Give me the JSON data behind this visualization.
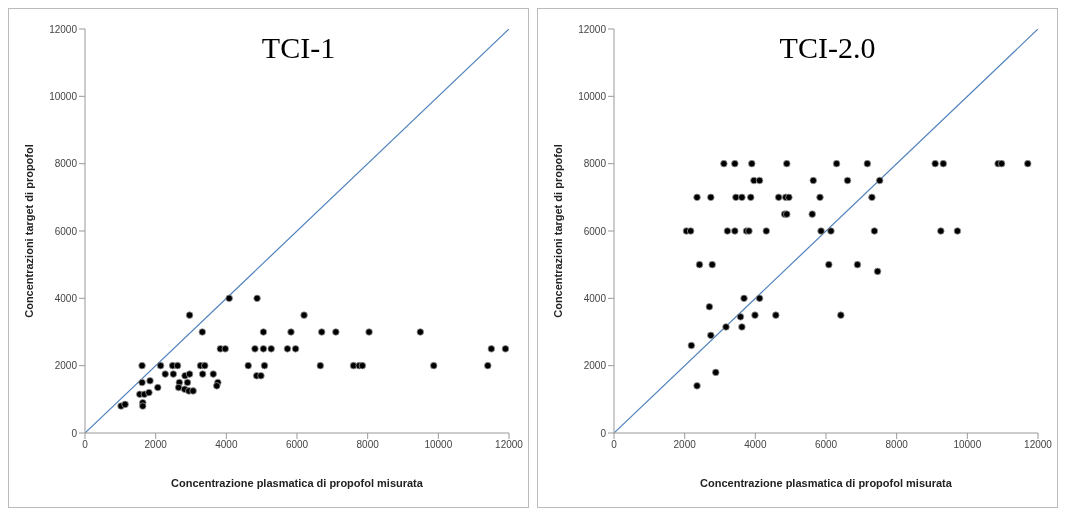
{
  "chart_data": [
    {
      "type": "scatter",
      "title": "TCI-1",
      "xlabel": "Concentrazione plasmatica di propofol misurata",
      "ylabel": "Concentrazioni target di propofol",
      "xlim": [
        0,
        12000
      ],
      "ylim": [
        0,
        12000
      ],
      "xticks": [
        0,
        2000,
        4000,
        6000,
        8000,
        10000,
        12000
      ],
      "yticks": [
        0,
        2000,
        4000,
        6000,
        8000,
        10000,
        12000
      ],
      "series": [
        {
          "marker": "circle",
          "color": "#000000",
          "x": [
            1020,
            1135,
            1615,
            1615,
            1550,
            1680,
            1635,
            1635,
            1810,
            1840,
            2060,
            2140,
            2270,
            2500,
            2480,
            2620,
            2670,
            2650,
            2830,
            2960,
            2900,
            2820,
            2940,
            3060,
            2960,
            3270,
            3390,
            3330,
            3320,
            3630,
            3760,
            3730,
            3830,
            3970,
            4080,
            4620,
            4870,
            4810,
            4860,
            4980,
            5050,
            5050,
            5080,
            5270,
            5730,
            5830,
            5960,
            6200,
            6700,
            7100,
            8040,
            9490,
            6660,
            7600,
            7760,
            7850,
            9870,
            11400,
            11500,
            11900
          ],
          "values": [
            800,
            850,
            2000,
            1500,
            1150,
            1150,
            900,
            800,
            1200,
            1550,
            1350,
            2000,
            1750,
            1750,
            2000,
            2000,
            1500,
            1350,
            1700,
            1750,
            1500,
            1300,
            1250,
            1250,
            3500,
            2000,
            2000,
            1750,
            3000,
            1750,
            1500,
            1400,
            2500,
            2500,
            4000,
            2000,
            4000,
            2500,
            1700,
            1700,
            3000,
            2500,
            2000,
            2500,
            2500,
            3000,
            2500,
            3500,
            3000,
            3000,
            3000,
            3000,
            2000,
            2000,
            2000,
            2000,
            2000,
            2000,
            2500,
            2500
          ]
        },
        {
          "type": "line",
          "color": "#4f81bd",
          "x": [
            0,
            12000
          ],
          "values": [
            0,
            12000
          ]
        }
      ]
    },
    {
      "type": "scatter",
      "title": "TCI-2.0",
      "xlabel": "Concentrazione plasmatica di propofol misurata",
      "ylabel": "Concentrazioni target di propofol",
      "xlim": [
        0,
        12000
      ],
      "ylim": [
        0,
        12000
      ],
      "xticks": [
        0,
        2000,
        4000,
        6000,
        8000,
        10000,
        12000
      ],
      "yticks": [
        0,
        2000,
        4000,
        6000,
        8000,
        10000,
        12000
      ],
      "series": [
        {
          "marker": "circle",
          "color": "#000000",
          "x": [
            3110,
            3420,
            3900,
            4890,
            3960,
            4120,
            5640,
            2350,
            2740,
            3450,
            3620,
            3870,
            4660,
            4860,
            4950,
            5830,
            4830,
            4890,
            5610,
            2050,
            2170,
            3210,
            3420,
            3750,
            3820,
            4310,
            5860,
            2420,
            2780,
            3680,
            4120,
            2700,
            3580,
            3990,
            4580,
            3170,
            3620,
            2740,
            2190,
            2880,
            2350,
            6300,
            7170,
            6610,
            7520,
            7300,
            6140,
            7370,
            9250,
            9720,
            6080,
            6890,
            7460,
            6420,
            9090,
            9320,
            10870,
            10970,
            11710
          ],
          "values": [
            8000,
            8000,
            8000,
            8000,
            7500,
            7500,
            7500,
            7000,
            7000,
            7000,
            7000,
            7000,
            7000,
            7000,
            7000,
            7000,
            6500,
            6500,
            6500,
            6000,
            6000,
            6000,
            6000,
            6000,
            6000,
            6000,
            6000,
            5000,
            5000,
            4000,
            4000,
            3750,
            3450,
            3500,
            3500,
            3150,
            3150,
            2900,
            2600,
            1800,
            1400,
            8000,
            8000,
            7500,
            7500,
            7000,
            6000,
            6000,
            6000,
            6000,
            5000,
            5000,
            4800,
            3500,
            8000,
            8000,
            8000,
            8000,
            8000
          ]
        },
        {
          "type": "line",
          "color": "#4f81bd",
          "x": [
            0,
            12000
          ],
          "values": [
            0,
            12000
          ]
        }
      ]
    }
  ]
}
